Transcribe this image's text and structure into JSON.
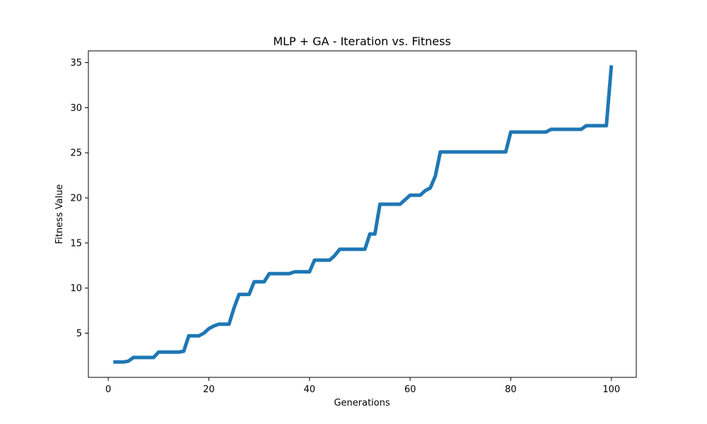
{
  "chart_data": {
    "type": "line",
    "title": "MLP + GA - Iteration vs. Fitness",
    "xlabel": "Generations",
    "ylabel": "Fitness Value",
    "xlim": [
      -3.95,
      104.95
    ],
    "ylim": [
      0.1,
      36.3
    ],
    "xticks": [
      0,
      20,
      40,
      60,
      80,
      100
    ],
    "yticks": [
      5,
      10,
      15,
      20,
      25,
      30,
      35
    ],
    "grid": false,
    "legend": "none",
    "series": [
      {
        "color": "#1f77b4",
        "x": [
          1,
          2,
          3,
          4,
          5,
          6,
          7,
          8,
          9,
          10,
          11,
          12,
          13,
          14,
          15,
          16,
          17,
          18,
          19,
          20,
          21,
          22,
          23,
          24,
          25,
          26,
          27,
          28,
          29,
          30,
          31,
          32,
          33,
          34,
          35,
          36,
          37,
          38,
          39,
          40,
          41,
          42,
          43,
          44,
          45,
          46,
          47,
          48,
          49,
          50,
          51,
          52,
          53,
          54,
          55,
          56,
          57,
          58,
          59,
          60,
          61,
          62,
          63,
          64,
          65,
          66,
          67,
          68,
          69,
          70,
          71,
          72,
          73,
          74,
          75,
          76,
          77,
          78,
          79,
          80,
          81,
          82,
          83,
          84,
          85,
          86,
          87,
          88,
          89,
          90,
          91,
          92,
          93,
          94,
          95,
          96,
          97,
          98,
          99,
          100
        ],
        "y": [
          1.8,
          1.8,
          1.8,
          1.9,
          2.3,
          2.3,
          2.3,
          2.3,
          2.3,
          2.9,
          2.9,
          2.9,
          2.9,
          2.9,
          3.0,
          4.7,
          4.7,
          4.7,
          5.0,
          5.5,
          5.8,
          6.0,
          6.0,
          6.0,
          7.8,
          9.3,
          9.3,
          9.3,
          10.7,
          10.7,
          10.7,
          11.6,
          11.6,
          11.6,
          11.6,
          11.6,
          11.8,
          11.8,
          11.8,
          11.8,
          13.1,
          13.1,
          13.1,
          13.1,
          13.6,
          14.3,
          14.3,
          14.3,
          14.3,
          14.3,
          14.3,
          16.0,
          16.0,
          19.3,
          19.3,
          19.3,
          19.3,
          19.3,
          19.8,
          20.3,
          20.3,
          20.3,
          20.8,
          21.1,
          22.4,
          25.1,
          25.1,
          25.1,
          25.1,
          25.1,
          25.1,
          25.1,
          25.1,
          25.1,
          25.1,
          25.1,
          25.1,
          25.1,
          25.1,
          27.3,
          27.3,
          27.3,
          27.3,
          27.3,
          27.3,
          27.3,
          27.3,
          27.6,
          27.6,
          27.6,
          27.6,
          27.6,
          27.6,
          27.6,
          28.0,
          28.0,
          28.0,
          28.0,
          28.0,
          34.7
        ]
      }
    ]
  }
}
